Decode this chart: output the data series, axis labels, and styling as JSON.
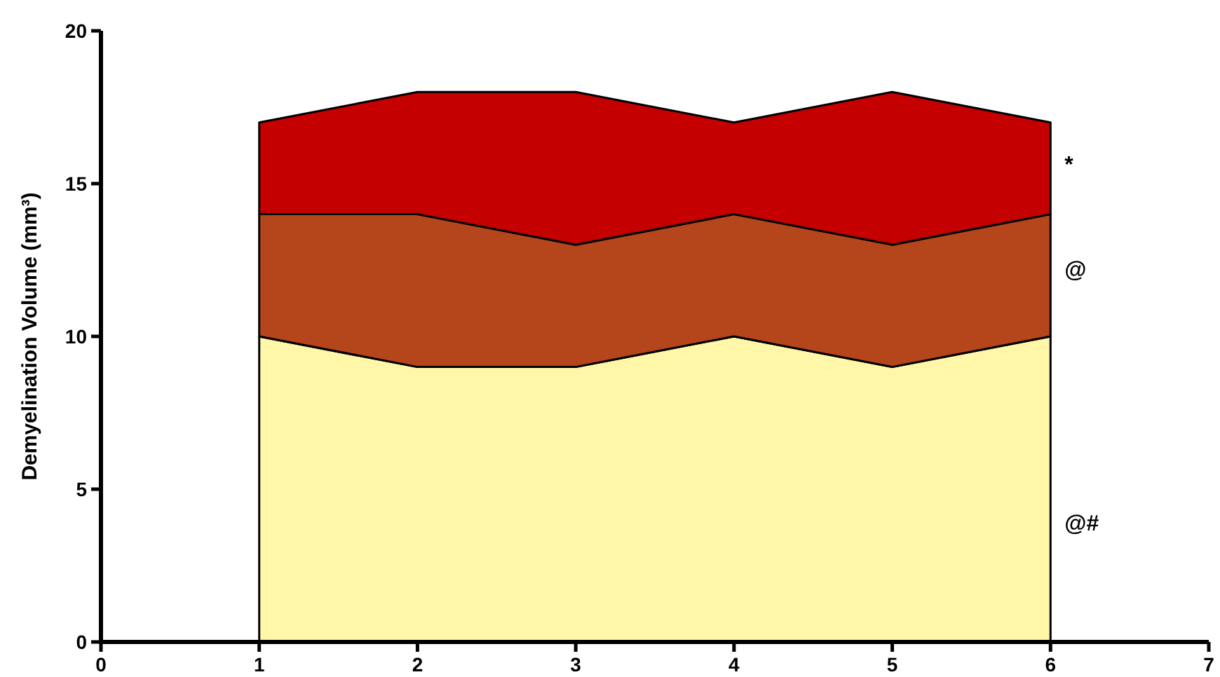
{
  "chart_data": {
    "type": "area",
    "stacked": true,
    "ylabel": "Demyelination Volume (mm³)",
    "x": [
      1,
      2,
      3,
      4,
      5,
      6
    ],
    "series": [
      {
        "color": "#fff6a8",
        "values": [
          10,
          9,
          9,
          10,
          9,
          10
        ]
      },
      {
        "color": "#b5451b",
        "values": [
          4,
          5,
          4,
          4,
          4,
          4
        ]
      },
      {
        "color": "#c40000",
        "values": [
          3,
          4,
          5,
          3,
          5,
          3
        ]
      }
    ],
    "xlim": [
      0,
      7
    ],
    "xticks": [
      0,
      1,
      2,
      3,
      4,
      5,
      6,
      7
    ],
    "ylim": [
      0,
      20
    ],
    "yticks": [
      0,
      5,
      10,
      15,
      20
    ],
    "grid": false,
    "annotations": [
      "@#",
      "@",
      "*"
    ]
  }
}
